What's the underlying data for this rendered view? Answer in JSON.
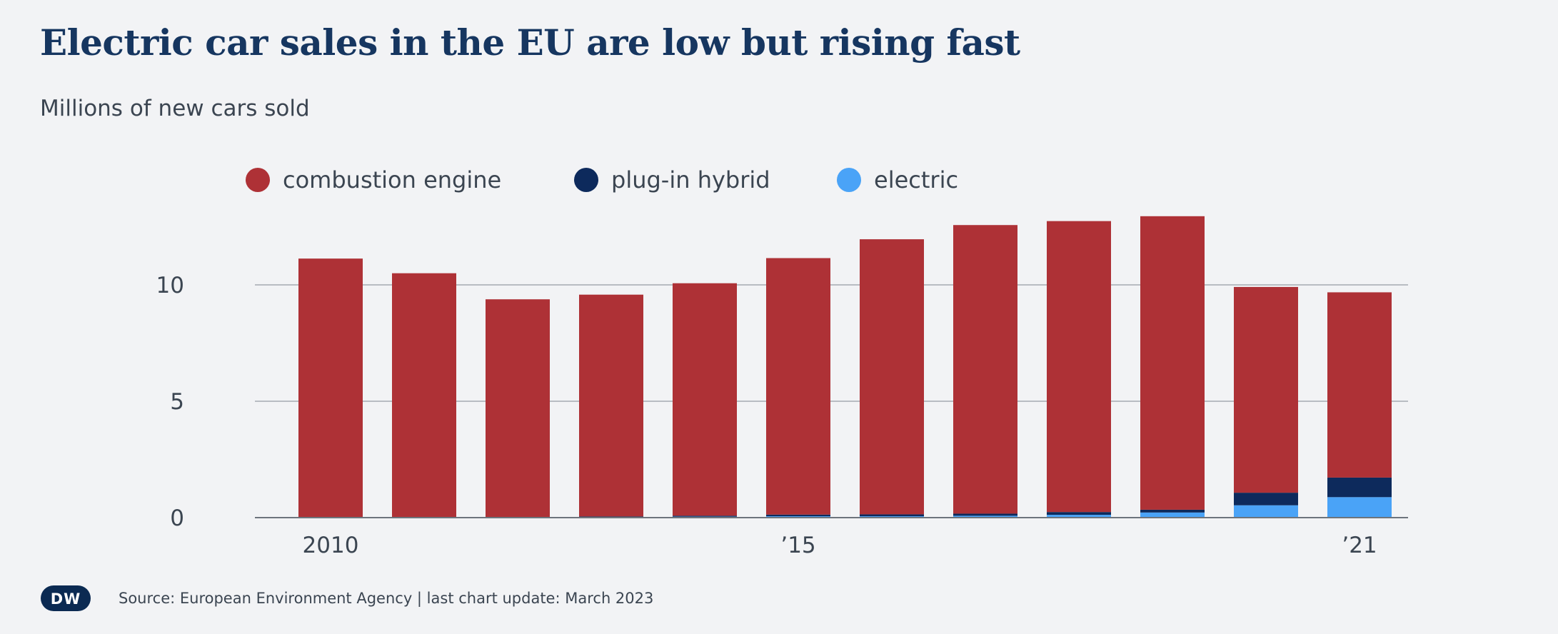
{
  "header": {
    "title": "Electric car sales in the EU are low but rising fast",
    "subtitle": "Millions of new cars sold"
  },
  "footer": {
    "logo_text": "DW",
    "source": "Source: European Environment Agency | last chart update: March 2023"
  },
  "colors": {
    "combustion": "#ae3136",
    "plugin_hybrid": "#0d2a5c",
    "electric": "#4aa3f7",
    "gridline": "#a4aab2",
    "axis_text": "#3b4551",
    "background": "#f2f3f5"
  },
  "chart_data": {
    "type": "bar",
    "stacked": true,
    "categories": [
      "2010",
      "2011",
      "2012",
      "2013",
      "2014",
      "2015",
      "2016",
      "2017",
      "2018",
      "2019",
      "2020",
      "2021"
    ],
    "x_tick_labels": [
      "2010",
      "",
      "",
      "",
      "",
      "’15",
      "",
      "",
      "",
      "",
      "",
      "’21"
    ],
    "series": [
      {
        "name": "electric",
        "color": "#4aa3f7",
        "values": [
          0.01,
          0.01,
          0.02,
          0.03,
          0.04,
          0.06,
          0.06,
          0.08,
          0.12,
          0.22,
          0.53,
          0.88
        ]
      },
      {
        "name": "plug-in hybrid",
        "color": "#0d2a5c",
        "values": [
          0.0,
          0.0,
          0.01,
          0.02,
          0.04,
          0.07,
          0.08,
          0.09,
          0.12,
          0.12,
          0.54,
          0.84
        ]
      },
      {
        "name": "combustion engine",
        "color": "#ae3136",
        "values": [
          11.12,
          10.49,
          9.35,
          9.53,
          9.99,
          11.02,
          11.82,
          12.4,
          12.5,
          12.61,
          8.84,
          7.96
        ]
      }
    ],
    "legend_order": [
      "combustion engine",
      "plug-in hybrid",
      "electric"
    ],
    "legend_position": "top",
    "title": "Electric car sales in the EU are low but rising fast",
    "subtitle": "Millions of new cars sold",
    "xlabel": "",
    "ylabel": "",
    "ylim": [
      0,
      13
    ],
    "yticks": [
      0,
      5,
      10
    ],
    "grid": true
  }
}
